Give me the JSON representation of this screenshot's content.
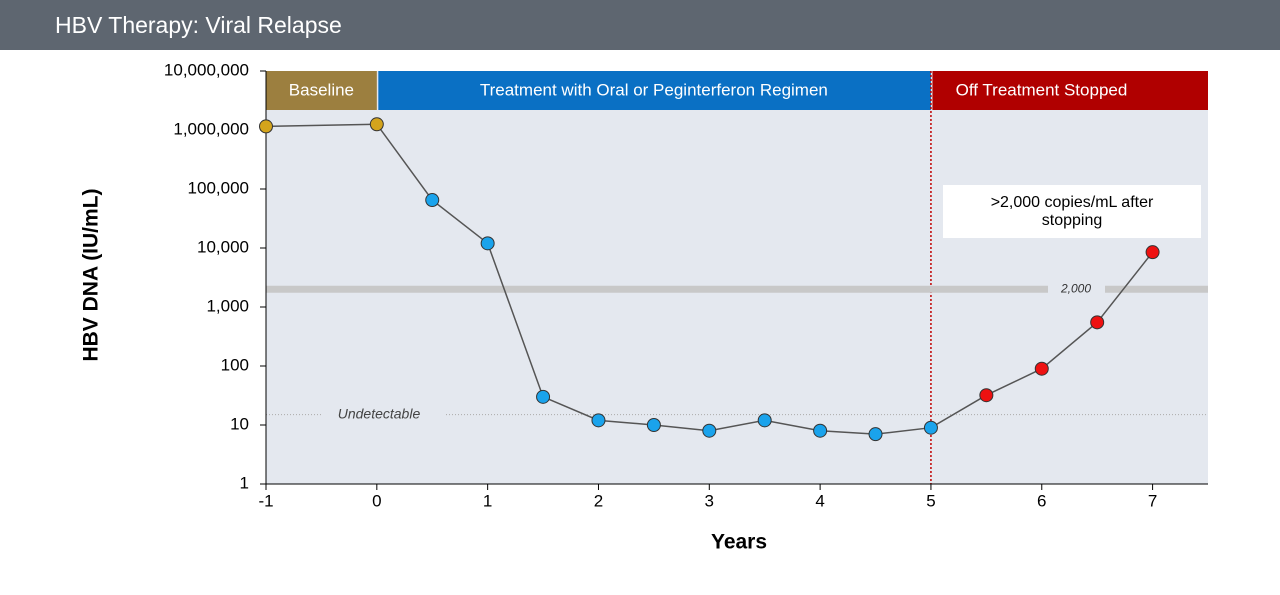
{
  "header": {
    "title": "HBV Therapy: Viral Relapse"
  },
  "chart_data": {
    "type": "line",
    "x_label": "Years",
    "y_label": "HBV DNA (IU/mL)",
    "x": [
      -1,
      0,
      0.5,
      1,
      1.5,
      2,
      2.5,
      3,
      3.5,
      4,
      4.5,
      5,
      5.5,
      6,
      6.5,
      7
    ],
    "series": [
      {
        "name": "HBV DNA",
        "color": "#555555",
        "values": [
          1150000,
          1250000,
          65000,
          12000,
          30,
          12,
          10,
          8,
          12,
          8,
          7,
          9,
          32,
          90,
          550,
          8500
        ],
        "point_colors": [
          "#d4a41c",
          "#d4a41c",
          "#1aa3ec",
          "#1aa3ec",
          "#1aa3ec",
          "#1aa3ec",
          "#1aa3ec",
          "#1aa3ec",
          "#1aa3ec",
          "#1aa3ec",
          "#1aa3ec",
          "#1aa3ec",
          "#ee1111",
          "#ee1111",
          "#ee1111",
          "#ee1111"
        ]
      }
    ],
    "xlim": [
      -1,
      7.5
    ],
    "xticks": [
      -1,
      0,
      1,
      2,
      3,
      4,
      5,
      6,
      7
    ],
    "ylim": [
      1,
      10000000
    ],
    "yscale": "log",
    "yticks": [
      1,
      10,
      100,
      {
        "value": 1000,
        "label": "1,000"
      },
      {
        "value": 10000,
        "label": "10,000"
      },
      {
        "value": 100000,
        "label": "100,000"
      },
      {
        "value": 1000000,
        "label": "1,000,000"
      },
      {
        "value": 10000000,
        "label": "10,000,000"
      }
    ],
    "phases": [
      {
        "label": "Baseline",
        "start": -1,
        "end": 0,
        "color": "#9c7f3f"
      },
      {
        "label": "Treatment with Oral or Peginterferon Regimen",
        "start": 0,
        "end": 5,
        "color": "#0a70c4"
      },
      {
        "label": "Off Treatment Stopped",
        "start": 5,
        "end": 7.5,
        "color": "#b00000"
      }
    ],
    "reference_lines": [
      {
        "value": 2000,
        "label": "2,000"
      },
      {
        "value": 15,
        "label": "Undetectable"
      }
    ],
    "annotation": ">2,000 copies/mL after stopping"
  }
}
